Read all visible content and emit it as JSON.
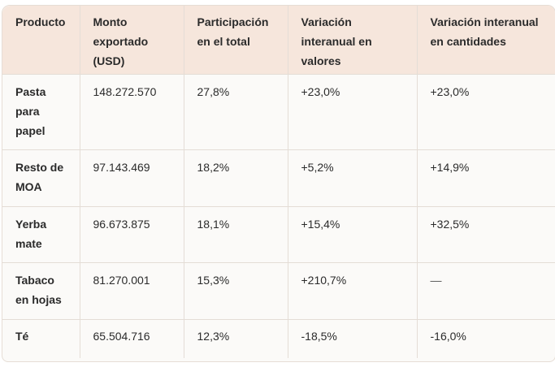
{
  "table": {
    "headers": [
      "Producto",
      "Monto exportado (USD)",
      "Participación en el total",
      "Variación interanual en valores",
      "Variación interanual en cantidades"
    ],
    "rows": [
      [
        "Pasta para papel",
        "148.272.570",
        "27,8%",
        "+23,0%",
        "+23,0%"
      ],
      [
        "Resto de MOA",
        "97.143.469",
        "18,2%",
        "+5,2%",
        "+14,9%"
      ],
      [
        "Yerba mate",
        "96.673.875",
        "18,1%",
        "+15,4%",
        "+32,5%"
      ],
      [
        "Tabaco en hojas",
        "81.270.001",
        "15,3%",
        "+210,7%",
        "—"
      ],
      [
        "Té",
        "65.504.716",
        "12,3%",
        "-18,5%",
        "-16,0%"
      ]
    ]
  },
  "colors": {
    "header_bg": "#f6e6dc",
    "body_bg": "#fbfaf8",
    "border": "#e4ddd6"
  }
}
